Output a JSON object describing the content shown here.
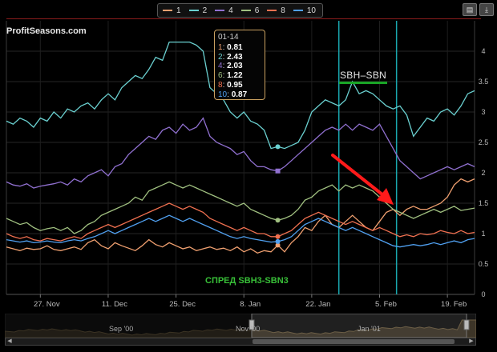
{
  "legend": {
    "items": [
      {
        "label": "1",
        "color": "#f0a070"
      },
      {
        "label": "2",
        "color": "#6ad0d0"
      },
      {
        "label": "4",
        "color": "#9070d0"
      },
      {
        "label": "6",
        "color": "#a0c080"
      },
      {
        "label": "8",
        "color": "#f07050"
      },
      {
        "label": "10",
        "color": "#50a0f0"
      }
    ]
  },
  "toolbar": {
    "print_icon": "print-icon",
    "download_icon": "download-icon"
  },
  "watermark": "ProfitSeasons.com",
  "tooltip": {
    "date": "01-14",
    "rows": [
      {
        "key": "1",
        "value": "0.81",
        "color": "#f0a070"
      },
      {
        "key": "2",
        "value": "2.43",
        "color": "#6ad0d0"
      },
      {
        "key": "4",
        "value": "2.03",
        "color": "#9070d0"
      },
      {
        "key": "6",
        "value": "1.22",
        "color": "#a0c080"
      },
      {
        "key": "8",
        "value": "0.95",
        "color": "#f07050"
      },
      {
        "key": "10",
        "value": "0.87",
        "color": "#50a0f0"
      }
    ]
  },
  "annotations": {
    "sbh_label": "SBH–SBN",
    "spread_label": "СПРЕД SBH3-SBN3",
    "arrow_color": "#ff1a1a",
    "band_color": "#1aa8b0"
  },
  "navigator": {
    "labels": [
      "Sep '00",
      "Nov '00",
      "Jan '01"
    ]
  },
  "chart_data": {
    "type": "line",
    "x_ticks": [
      "27. Nov",
      "11. Dec",
      "25. Dec",
      "8. Jan",
      "22. Jan",
      "5. Feb",
      "19. Feb"
    ],
    "y_ticks": [
      "0",
      "0.5",
      "1",
      "1.5",
      "2",
      "2.5",
      "3",
      "3.5",
      "4"
    ],
    "ylim": [
      0,
      4.5
    ],
    "y_axis_side": "right",
    "grid": true,
    "legend_position": "top-center",
    "vertical_markers": [
      "~28. Jan",
      "~8. Feb"
    ],
    "x": [
      "11-20",
      "11-21",
      "11-22",
      "11-23",
      "11-24",
      "11-27",
      "11-28",
      "11-29",
      "11-30",
      "12-01",
      "12-04",
      "12-05",
      "12-06",
      "12-07",
      "12-08",
      "12-11",
      "12-12",
      "12-13",
      "12-14",
      "12-15",
      "12-18",
      "12-19",
      "12-20",
      "12-21",
      "12-22",
      "12-25",
      "12-26",
      "12-27",
      "12-28",
      "12-29",
      "01-01",
      "01-02",
      "01-03",
      "01-04",
      "01-05",
      "01-08",
      "01-09",
      "01-10",
      "01-11",
      "01-12",
      "01-15",
      "01-16",
      "01-17",
      "01-18",
      "01-19",
      "01-22",
      "01-23",
      "01-24",
      "01-25",
      "01-26",
      "01-29",
      "01-30",
      "01-31",
      "02-01",
      "02-02",
      "02-05",
      "02-06",
      "02-07",
      "02-08",
      "02-09",
      "02-12",
      "02-13",
      "02-14",
      "02-15",
      "02-16",
      "02-19",
      "02-20",
      "02-21",
      "02-22",
      "02-23"
    ],
    "series": [
      {
        "name": "1",
        "color": "#f0a070",
        "values": [
          0.78,
          0.75,
          0.72,
          0.76,
          0.74,
          0.75,
          0.8,
          0.74,
          0.72,
          0.75,
          0.78,
          0.74,
          0.85,
          0.9,
          0.8,
          0.75,
          0.85,
          0.8,
          0.76,
          0.72,
          0.8,
          0.9,
          0.82,
          0.78,
          0.85,
          0.8,
          0.75,
          0.78,
          0.72,
          0.75,
          0.78,
          0.74,
          0.76,
          0.72,
          0.78,
          0.7,
          0.75,
          0.68,
          0.72,
          0.7,
          0.81,
          0.7,
          0.85,
          0.95,
          1.1,
          1.05,
          1.2,
          1.3,
          1.15,
          1.1,
          1.2,
          1.3,
          1.2,
          1.1,
          1.05,
          1.2,
          1.35,
          1.4,
          1.3,
          1.4,
          1.45,
          1.4,
          1.4,
          1.45,
          1.5,
          1.6,
          1.8,
          1.9,
          1.85,
          1.9
        ]
      },
      {
        "name": "2",
        "color": "#6ad0d0",
        "values": [
          2.85,
          2.8,
          2.9,
          2.85,
          2.75,
          2.9,
          2.85,
          3.0,
          2.9,
          3.05,
          3.0,
          3.1,
          3.15,
          3.05,
          3.2,
          3.3,
          3.2,
          3.4,
          3.5,
          3.6,
          3.55,
          3.7,
          3.9,
          3.85,
          4.15,
          4.15,
          4.15,
          4.15,
          4.1,
          4.0,
          3.4,
          3.3,
          3.2,
          3.0,
          2.9,
          3.0,
          2.85,
          2.8,
          2.7,
          2.4,
          2.43,
          2.4,
          2.45,
          2.5,
          2.7,
          3.0,
          3.1,
          3.2,
          3.15,
          3.1,
          3.2,
          3.5,
          3.3,
          3.35,
          3.3,
          3.2,
          3.1,
          3.05,
          3.1,
          2.95,
          2.6,
          2.75,
          2.9,
          2.85,
          3.0,
          3.05,
          2.95,
          3.1,
          3.3,
          3.35
        ]
      },
      {
        "name": "4",
        "color": "#9070d0",
        "values": [
          1.85,
          1.8,
          1.78,
          1.82,
          1.75,
          1.78,
          1.8,
          1.82,
          1.85,
          1.8,
          1.9,
          1.85,
          1.95,
          2.0,
          2.05,
          1.95,
          2.1,
          2.15,
          2.3,
          2.4,
          2.5,
          2.6,
          2.55,
          2.7,
          2.75,
          2.65,
          2.8,
          2.7,
          2.75,
          2.9,
          2.6,
          2.5,
          2.45,
          2.4,
          2.3,
          2.35,
          2.2,
          2.1,
          2.1,
          2.05,
          2.03,
          2.1,
          2.2,
          2.3,
          2.4,
          2.5,
          2.6,
          2.7,
          2.75,
          2.7,
          2.8,
          2.7,
          2.8,
          2.75,
          2.7,
          2.8,
          2.6,
          2.4,
          2.2,
          2.1,
          2.0,
          1.9,
          1.95,
          2.0,
          2.05,
          2.1,
          2.05,
          2.1,
          2.15,
          2.1
        ]
      },
      {
        "name": "6",
        "color": "#a0c080",
        "values": [
          1.25,
          1.2,
          1.15,
          1.18,
          1.1,
          1.05,
          1.08,
          1.1,
          1.05,
          1.1,
          1.0,
          1.05,
          1.15,
          1.2,
          1.3,
          1.35,
          1.4,
          1.45,
          1.5,
          1.6,
          1.55,
          1.7,
          1.75,
          1.8,
          1.85,
          1.8,
          1.75,
          1.8,
          1.75,
          1.7,
          1.65,
          1.6,
          1.55,
          1.5,
          1.45,
          1.5,
          1.4,
          1.35,
          1.3,
          1.25,
          1.22,
          1.25,
          1.3,
          1.4,
          1.55,
          1.6,
          1.7,
          1.75,
          1.8,
          1.7,
          1.8,
          1.75,
          1.8,
          1.75,
          1.7,
          1.6,
          1.5,
          1.4,
          1.35,
          1.3,
          1.25,
          1.3,
          1.35,
          1.4,
          1.35,
          1.4,
          1.45,
          1.38,
          1.4,
          1.42
        ]
      },
      {
        "name": "8",
        "color": "#f07050",
        "values": [
          1.0,
          0.95,
          0.92,
          0.95,
          0.9,
          0.88,
          0.92,
          0.9,
          0.88,
          0.92,
          0.95,
          0.92,
          1.0,
          1.05,
          1.1,
          1.15,
          1.1,
          1.15,
          1.2,
          1.25,
          1.3,
          1.35,
          1.4,
          1.45,
          1.5,
          1.45,
          1.4,
          1.45,
          1.4,
          1.35,
          1.25,
          1.2,
          1.15,
          1.1,
          1.05,
          1.1,
          1.05,
          1.0,
          1.0,
          0.95,
          0.95,
          1.0,
          1.05,
          1.15,
          1.25,
          1.3,
          1.35,
          1.3,
          1.25,
          1.2,
          1.15,
          1.2,
          1.15,
          1.1,
          1.05,
          1.1,
          1.05,
          1.0,
          0.95,
          0.98,
          0.95,
          1.0,
          0.98,
          1.0,
          1.05,
          1.02,
          1.0,
          1.05,
          1.0,
          1.02
        ]
      },
      {
        "name": "10",
        "color": "#50a0f0",
        "values": [
          0.9,
          0.88,
          0.86,
          0.88,
          0.85,
          0.86,
          0.88,
          0.86,
          0.85,
          0.88,
          0.9,
          0.88,
          0.92,
          0.95,
          1.0,
          1.05,
          1.0,
          1.05,
          1.1,
          1.15,
          1.2,
          1.25,
          1.2,
          1.25,
          1.3,
          1.25,
          1.2,
          1.25,
          1.2,
          1.15,
          1.1,
          1.05,
          1.0,
          0.95,
          0.92,
          0.95,
          0.92,
          0.9,
          0.88,
          0.86,
          0.87,
          0.9,
          0.95,
          1.05,
          1.15,
          1.2,
          1.25,
          1.2,
          1.15,
          1.1,
          1.05,
          1.1,
          1.05,
          1.0,
          0.95,
          0.9,
          0.85,
          0.8,
          0.78,
          0.8,
          0.82,
          0.8,
          0.82,
          0.85,
          0.82,
          0.85,
          0.88,
          0.85,
          0.9,
          0.92
        ]
      }
    ]
  }
}
